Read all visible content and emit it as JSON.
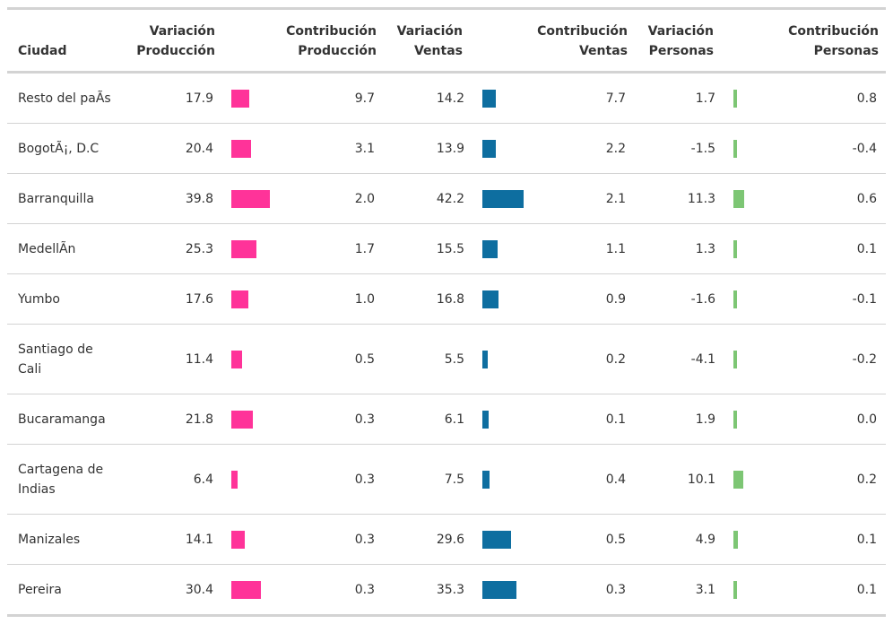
{
  "headers": {
    "ciudad": "Ciudad",
    "var_prod": [
      "Variación",
      "Producción"
    ],
    "con_prod": [
      "Contribución",
      "Producción"
    ],
    "var_vent": [
      "Variación",
      "Ventas"
    ],
    "con_vent": [
      "Contribución",
      "Ventas"
    ],
    "var_pers": [
      "Variación",
      "Personas"
    ],
    "con_pers": [
      "Contribución",
      "Personas"
    ]
  },
  "colors": {
    "produccion": "#ff3399",
    "ventas": "#0e6ea0",
    "personas": "#7dc674"
  },
  "chart_data": {
    "type": "table",
    "columns": [
      "Ciudad",
      "Variación Producción",
      "Contribución Producción",
      "Variación Ventas",
      "Contribución Ventas",
      "Variación Personas",
      "Contribución Personas"
    ],
    "rows": [
      {
        "city": "Resto del paÃs",
        "var_prod": "17.9",
        "con_prod": "9.7",
        "var_vent": "14.2",
        "con_vent": "7.7",
        "var_pers": "1.7",
        "con_pers": "0.8"
      },
      {
        "city": "BogotÃ¡, D.C",
        "var_prod": "20.4",
        "con_prod": "3.1",
        "var_vent": "13.9",
        "con_vent": "2.2",
        "var_pers": "-1.5",
        "con_pers": "-0.4"
      },
      {
        "city": "Barranquilla",
        "var_prod": "39.8",
        "con_prod": "2.0",
        "var_vent": "42.2",
        "con_vent": "2.1",
        "var_pers": "11.3",
        "con_pers": "0.6"
      },
      {
        "city": "MedellÃn",
        "var_prod": "25.3",
        "con_prod": "1.7",
        "var_vent": "15.5",
        "con_vent": "1.1",
        "var_pers": "1.3",
        "con_pers": "0.1"
      },
      {
        "city": "Yumbo",
        "var_prod": "17.6",
        "con_prod": "1.0",
        "var_vent": "16.8",
        "con_vent": "0.9",
        "var_pers": "-1.6",
        "con_pers": "-0.1"
      },
      {
        "city": "Santiago de Cali",
        "var_prod": "11.4",
        "con_prod": "0.5",
        "var_vent": "5.5",
        "con_vent": "0.2",
        "var_pers": "-4.1",
        "con_pers": "-0.2"
      },
      {
        "city": "Bucaramanga",
        "var_prod": "21.8",
        "con_prod": "0.3",
        "var_vent": "6.1",
        "con_vent": "0.1",
        "var_pers": "1.9",
        "con_pers": "0.0"
      },
      {
        "city": "Cartagena de Indias",
        "var_prod": "6.4",
        "con_prod": "0.3",
        "var_vent": "7.5",
        "con_vent": "0.4",
        "var_pers": "10.1",
        "con_pers": "0.2"
      },
      {
        "city": "Manizales",
        "var_prod": "14.1",
        "con_prod": "0.3",
        "var_vent": "29.6",
        "con_vent": "0.5",
        "var_pers": "4.9",
        "con_pers": "0.1"
      },
      {
        "city": "Pereira",
        "var_prod": "30.4",
        "con_prod": "0.3",
        "var_vent": "35.3",
        "con_vent": "0.3",
        "var_pers": "3.1",
        "con_pers": "0.1"
      }
    ]
  }
}
